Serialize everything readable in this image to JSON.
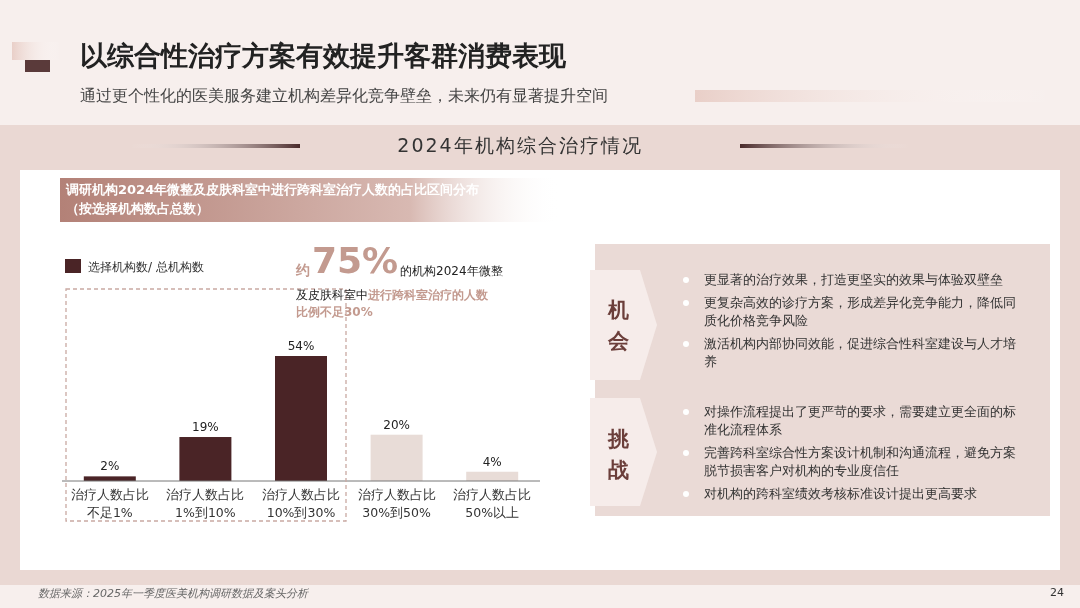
{
  "chart_data": {
    "type": "bar",
    "title": "以综合性治疗方案有效提升客群消费表现",
    "subtitle": "通过更个性化的医美服务建立机构差异化竞争壁垒，未来仍有显著提升空间",
    "categories": [
      "治疗人数占比不足1%",
      "治疗人数占比1%到10%",
      "治疗人数占比10%到30%",
      "治疗人数占比30%到50%",
      "治疗人数占比50%以上"
    ],
    "series": [
      {
        "name": "选择机构数/ 总机构数",
        "color": "#4a2426",
        "colors": [
          "#4a2426",
          "#4a2426",
          "#4a2426",
          "#e8dcd7",
          "#e8dcd7"
        ],
        "values": [
          2,
          19,
          54,
          20,
          4
        ],
        "value_labels": [
          "2%",
          "19%",
          "54%",
          "20%",
          "4%"
        ]
      }
    ],
    "legend": "top left",
    "annotations": [
      "2024年机构综合治疗情况",
      "调研机构2024年微整及皮肤科室中进行跨科室治疗人数的占比区间分布",
      "（按选择机构数占总数）",
      "约",
      "75%",
      "的机构2024年微整",
      "及皮肤科室中",
      "进行跨科室治疗的人数",
      "比例不足30%",
      "机会",
      "更显著的治疗效果，打造更坚实的效果与体验双壁垒",
      "更复杂高效的诊疗方案，形成差异化竞争能力，降低同质化价格竞争风险",
      "激活机构内部协同效能，促进综合性科室建设与人才培养",
      "挑战",
      "对操作流程提出了更严苛的要求，需要建立更全面的标准化流程体系",
      "完善跨科室综合性方案设计机制和沟通流程，避免方案脱节损害客户对机构的专业度信任",
      "对机构的跨科室绩效考核标准设计提出更高要求",
      "数据来源：2025年一季度医美机构调研数据及案头分析",
      "24"
    ]
  }
}
